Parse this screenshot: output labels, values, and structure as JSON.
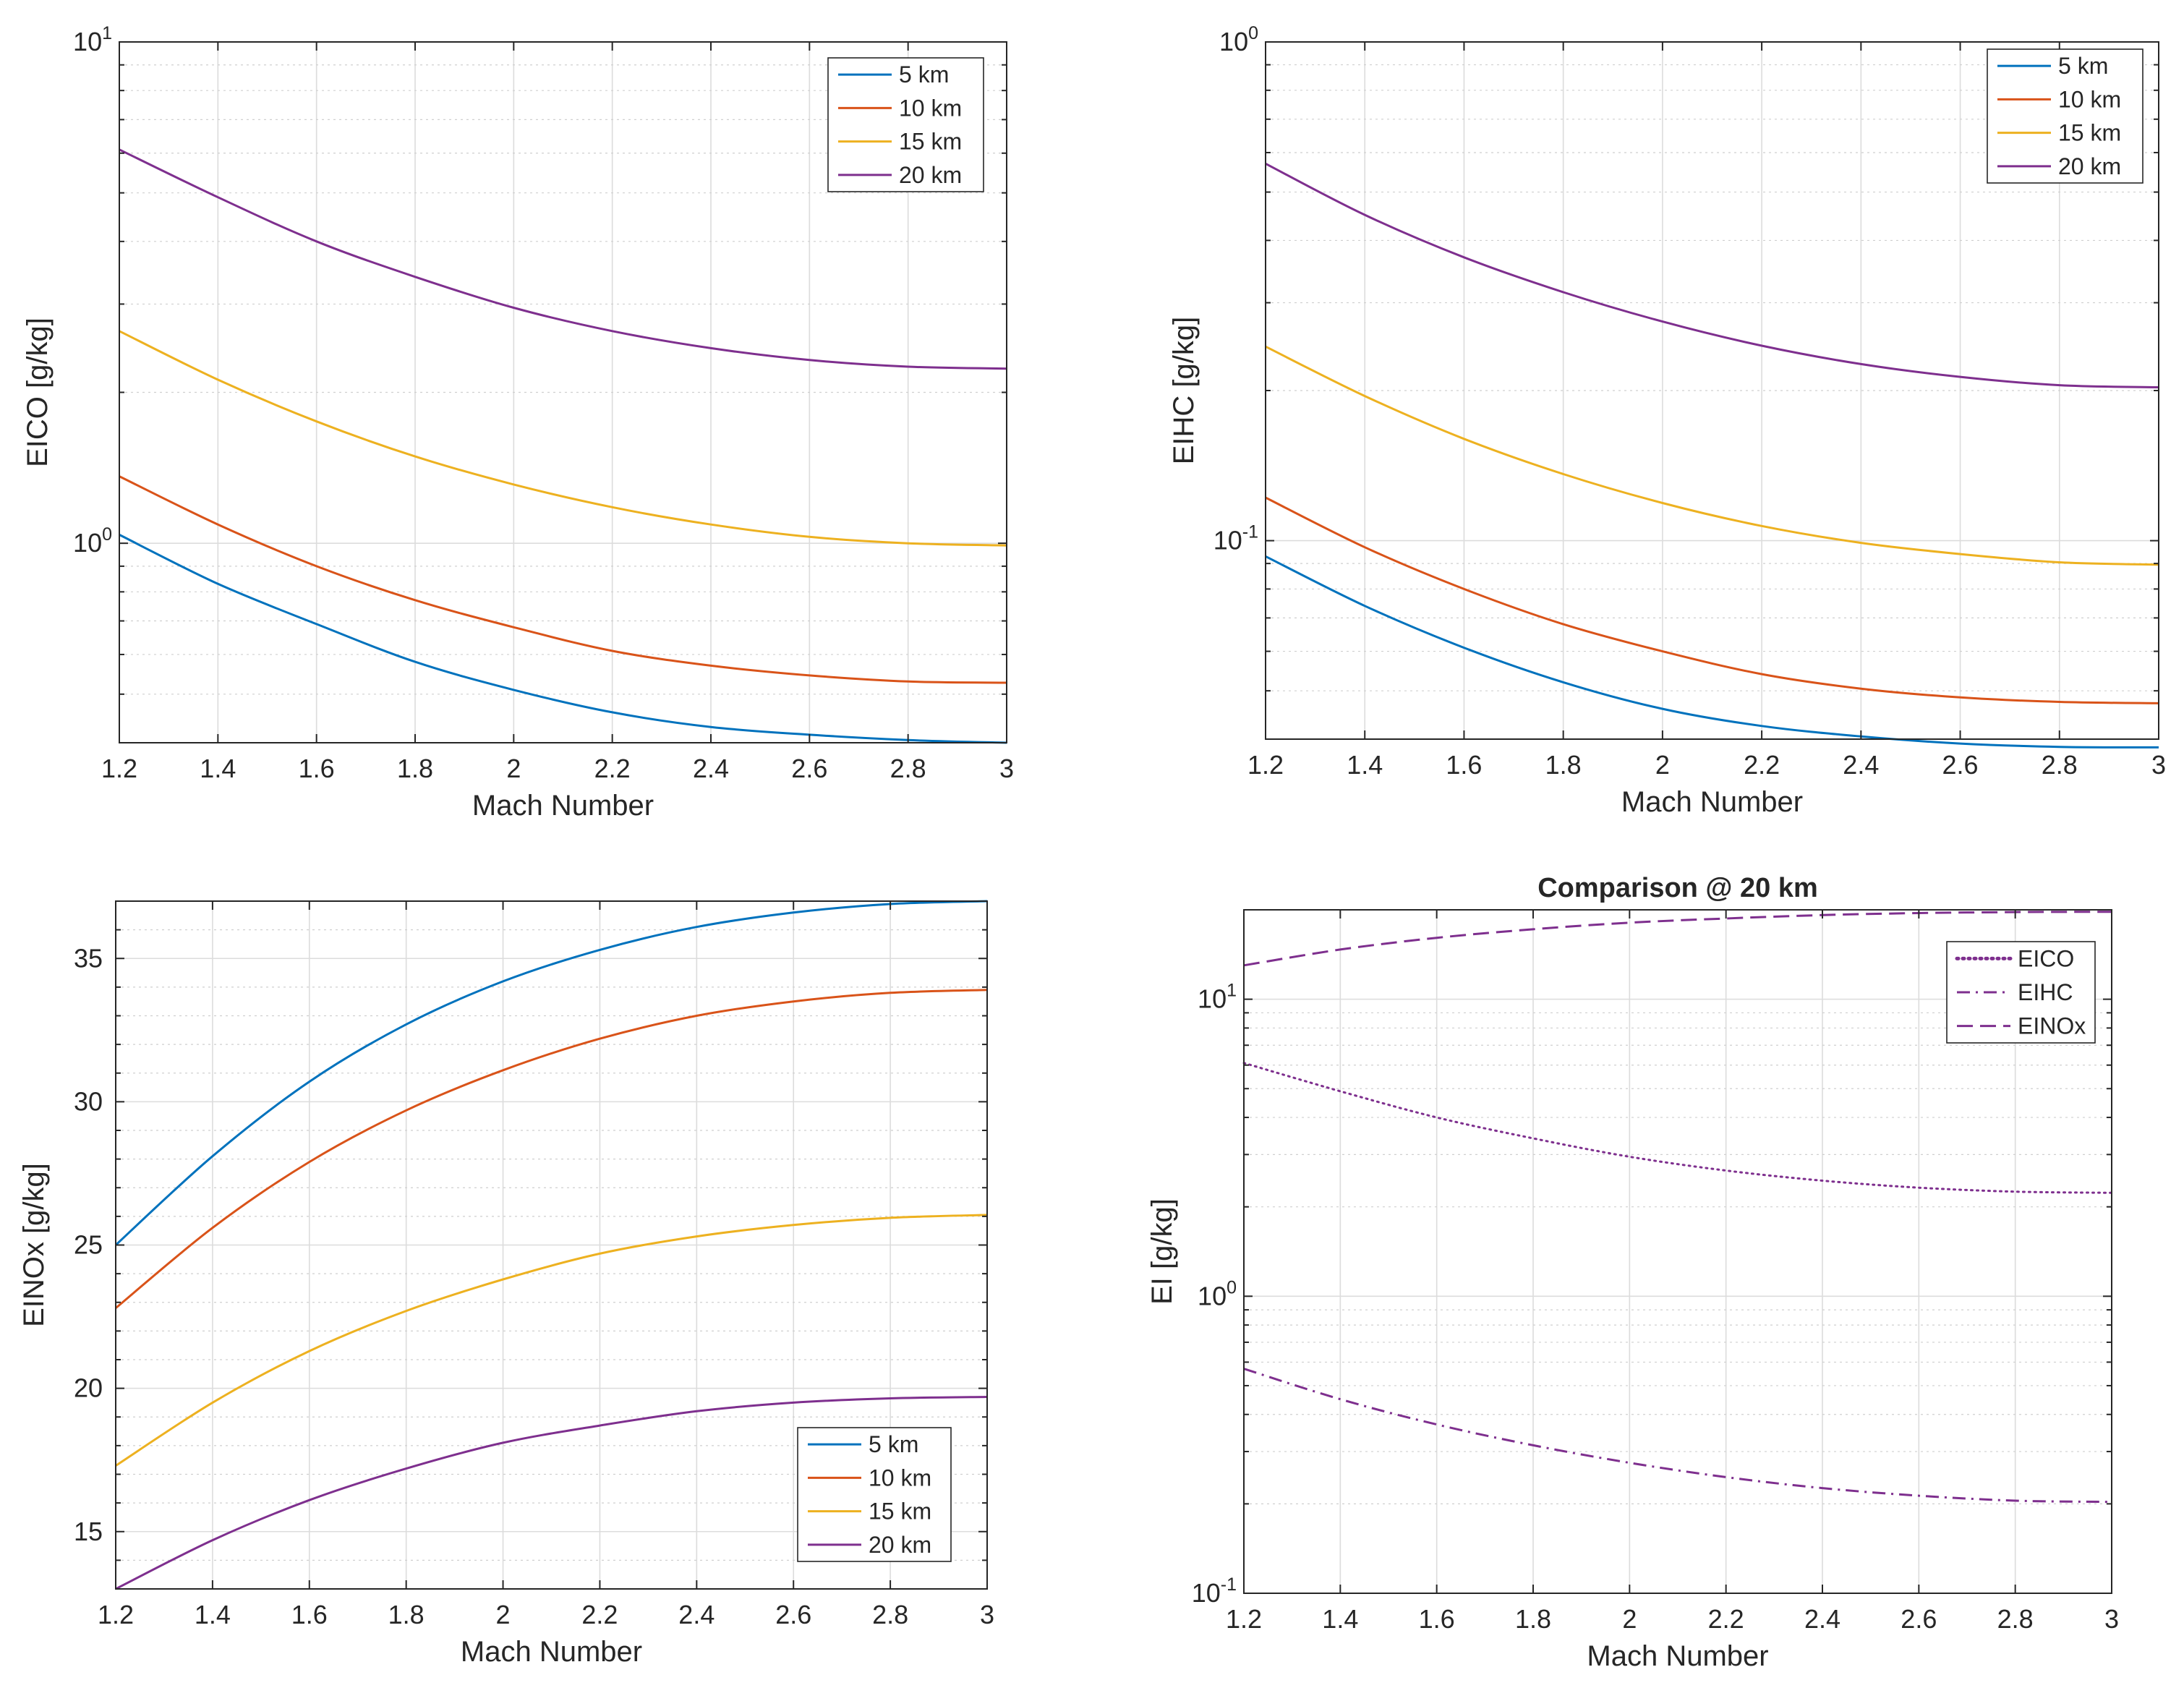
{
  "colors": {
    "5km": "#0072BD",
    "10km": "#D95319",
    "15km": "#EDB120",
    "20km": "#7E2F8E",
    "axis": "#262626",
    "grid": "#dcdcdc"
  },
  "chart_data": [
    {
      "id": "eico",
      "type": "line",
      "scale": "log",
      "title": "",
      "xlabel": "Mach Number",
      "ylabel": "EICO [g/kg]",
      "xlim": [
        1.2,
        3
      ],
      "ylim": [
        0.4,
        10
      ],
      "x_ticks": [
        "1.2",
        "1.4",
        "1.6",
        "1.8",
        "2",
        "2.2",
        "2.4",
        "2.6",
        "2.8",
        "3"
      ],
      "y_ticks": [
        {
          "value": 1,
          "base": "10",
          "exp": "0"
        },
        {
          "value": 10,
          "base": "10",
          "exp": "1"
        }
      ],
      "legend_location": "top-right",
      "series": [
        {
          "name": "5 km",
          "color_key": "5km",
          "style": "solid",
          "x": [
            1.2,
            1.4,
            1.6,
            1.8,
            2.0,
            2.2,
            2.4,
            2.6,
            2.8,
            3.0
          ],
          "values": [
            1.04,
            0.83,
            0.69,
            0.58,
            0.51,
            0.46,
            0.43,
            0.415,
            0.405,
            0.4
          ]
        },
        {
          "name": "10 km",
          "color_key": "10km",
          "style": "solid",
          "x": [
            1.2,
            1.4,
            1.6,
            1.8,
            2.0,
            2.2,
            2.4,
            2.6,
            2.8,
            3.0
          ],
          "values": [
            1.36,
            1.09,
            0.9,
            0.77,
            0.68,
            0.61,
            0.57,
            0.545,
            0.53,
            0.527
          ]
        },
        {
          "name": "15 km",
          "color_key": "15km",
          "style": "solid",
          "x": [
            1.2,
            1.4,
            1.6,
            1.8,
            2.0,
            2.2,
            2.4,
            2.6,
            2.8,
            3.0
          ],
          "values": [
            2.65,
            2.12,
            1.75,
            1.49,
            1.31,
            1.18,
            1.09,
            1.03,
            1.0,
            0.99
          ]
        },
        {
          "name": "20 km",
          "color_key": "20km",
          "style": "solid",
          "x": [
            1.2,
            1.4,
            1.6,
            1.8,
            2.0,
            2.2,
            2.4,
            2.6,
            2.8,
            3.0
          ],
          "values": [
            6.1,
            4.9,
            4.0,
            3.4,
            2.95,
            2.65,
            2.45,
            2.32,
            2.25,
            2.23
          ]
        }
      ]
    },
    {
      "id": "eihc",
      "type": "line",
      "scale": "log",
      "title": "",
      "xlabel": "Mach Number",
      "ylabel": "EIHC [g/kg]",
      "xlim": [
        1.2,
        3
      ],
      "ylim": [
        0.04,
        1
      ],
      "x_ticks": [
        "1.2",
        "1.4",
        "1.6",
        "1.8",
        "2",
        "2.2",
        "2.4",
        "2.6",
        "2.8",
        "3"
      ],
      "y_ticks": [
        {
          "value": 0.1,
          "base": "10",
          "exp": "-1"
        },
        {
          "value": 1,
          "base": "10",
          "exp": "0"
        }
      ],
      "legend_location": "top-right",
      "series": [
        {
          "name": "5 km",
          "color_key": "5km",
          "style": "solid",
          "x": [
            1.2,
            1.4,
            1.6,
            1.8,
            2.0,
            2.2,
            2.4,
            2.6,
            2.8,
            3.0
          ],
          "values": [
            0.093,
            0.074,
            0.061,
            0.052,
            0.046,
            0.0425,
            0.0405,
            0.0392,
            0.0386,
            0.0385
          ]
        },
        {
          "name": "10 km",
          "color_key": "10km",
          "style": "solid",
          "x": [
            1.2,
            1.4,
            1.6,
            1.8,
            2.0,
            2.2,
            2.4,
            2.6,
            2.8,
            3.0
          ],
          "values": [
            0.122,
            0.097,
            0.08,
            0.068,
            0.06,
            0.054,
            0.0505,
            0.0485,
            0.0475,
            0.0472
          ]
        },
        {
          "name": "15 km",
          "color_key": "15km",
          "style": "solid",
          "x": [
            1.2,
            1.4,
            1.6,
            1.8,
            2.0,
            2.2,
            2.4,
            2.6,
            2.8,
            3.0
          ],
          "values": [
            0.245,
            0.195,
            0.16,
            0.136,
            0.119,
            0.107,
            0.099,
            0.094,
            0.0905,
            0.0895
          ]
        },
        {
          "name": "20 km",
          "color_key": "20km",
          "style": "solid",
          "x": [
            1.2,
            1.4,
            1.6,
            1.8,
            2.0,
            2.2,
            2.4,
            2.6,
            2.8,
            3.0
          ],
          "values": [
            0.57,
            0.45,
            0.37,
            0.315,
            0.275,
            0.246,
            0.226,
            0.213,
            0.205,
            0.203
          ]
        }
      ]
    },
    {
      "id": "einox",
      "type": "line",
      "scale": "linear",
      "title": "",
      "xlabel": "Mach Number",
      "ylabel": "EINOx [g/kg]",
      "xlim": [
        1.2,
        3
      ],
      "ylim": [
        13,
        37
      ],
      "x_ticks": [
        "1.2",
        "1.4",
        "1.6",
        "1.8",
        "2",
        "2.2",
        "2.4",
        "2.6",
        "2.8",
        "3"
      ],
      "y_ticks": [
        {
          "value": 15,
          "label": "15"
        },
        {
          "value": 20,
          "label": "20"
        },
        {
          "value": 25,
          "label": "25"
        },
        {
          "value": 30,
          "label": "30"
        },
        {
          "value": 35,
          "label": "35"
        }
      ],
      "legend_location": "bottom-right",
      "series": [
        {
          "name": "5 km",
          "color_key": "5km",
          "style": "solid",
          "x": [
            1.2,
            1.4,
            1.6,
            1.8,
            2.0,
            2.2,
            2.4,
            2.6,
            2.8,
            3.0
          ],
          "values": [
            25.0,
            28.1,
            30.7,
            32.7,
            34.2,
            35.3,
            36.1,
            36.6,
            36.9,
            37.0
          ]
        },
        {
          "name": "10 km",
          "color_key": "10km",
          "style": "solid",
          "x": [
            1.2,
            1.4,
            1.6,
            1.8,
            2.0,
            2.2,
            2.4,
            2.6,
            2.8,
            3.0
          ],
          "values": [
            22.8,
            25.6,
            27.9,
            29.7,
            31.1,
            32.2,
            33.0,
            33.5,
            33.8,
            33.9
          ]
        },
        {
          "name": "15 km",
          "color_key": "15km",
          "style": "solid",
          "x": [
            1.2,
            1.4,
            1.6,
            1.8,
            2.0,
            2.2,
            2.4,
            2.6,
            2.8,
            3.0
          ],
          "values": [
            17.3,
            19.5,
            21.3,
            22.7,
            23.8,
            24.7,
            25.3,
            25.7,
            25.95,
            26.05
          ]
        },
        {
          "name": "20 km",
          "color_key": "20km",
          "style": "solid",
          "x": [
            1.2,
            1.4,
            1.6,
            1.8,
            2.0,
            2.2,
            2.4,
            2.6,
            2.8,
            3.0
          ],
          "values": [
            13.0,
            14.7,
            16.1,
            17.2,
            18.1,
            18.7,
            19.2,
            19.5,
            19.65,
            19.7
          ]
        }
      ]
    },
    {
      "id": "comparison",
      "type": "line",
      "scale": "log",
      "title": "Comparison @ 20 km",
      "xlabel": "Mach Number",
      "ylabel": "EI [g/kg]",
      "xlim": [
        1.2,
        3
      ],
      "ylim": [
        0.1,
        20
      ],
      "x_ticks": [
        "1.2",
        "1.4",
        "1.6",
        "1.8",
        "2",
        "2.2",
        "2.4",
        "2.6",
        "2.8",
        "3"
      ],
      "y_ticks": [
        {
          "value": 0.1,
          "base": "10",
          "exp": "-1"
        },
        {
          "value": 1,
          "base": "10",
          "exp": "0"
        },
        {
          "value": 10,
          "base": "10",
          "exp": "1"
        }
      ],
      "legend_location": "top-right",
      "series": [
        {
          "name": "EICO",
          "color_key": "20km",
          "style": "dotted",
          "x": [
            1.2,
            1.4,
            1.6,
            1.8,
            2.0,
            2.2,
            2.4,
            2.6,
            2.8,
            3.0
          ],
          "values": [
            6.1,
            4.9,
            4.0,
            3.4,
            2.95,
            2.65,
            2.45,
            2.32,
            2.25,
            2.23
          ]
        },
        {
          "name": "EIHC",
          "color_key": "20km",
          "style": "dashdot",
          "x": [
            1.2,
            1.4,
            1.6,
            1.8,
            2.0,
            2.2,
            2.4,
            2.6,
            2.8,
            3.0
          ],
          "values": [
            0.57,
            0.45,
            0.37,
            0.315,
            0.275,
            0.246,
            0.226,
            0.213,
            0.205,
            0.203
          ]
        },
        {
          "name": "EINOx",
          "color_key": "20km",
          "style": "dashed",
          "x": [
            1.2,
            1.4,
            1.6,
            1.8,
            2.0,
            2.2,
            2.4,
            2.6,
            2.8,
            3.0
          ],
          "values": [
            13.0,
            14.7,
            16.1,
            17.2,
            18.1,
            18.7,
            19.2,
            19.5,
            19.65,
            19.7
          ]
        }
      ]
    }
  ]
}
